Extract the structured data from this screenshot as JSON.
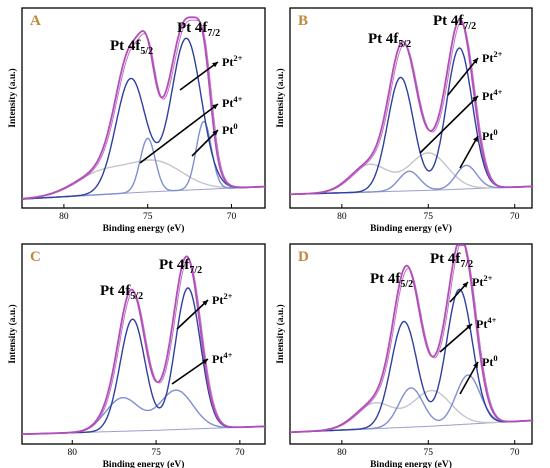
{
  "colors": {
    "envelope": "#b24fb8",
    "pt_main": "#2f3f9e",
    "pt_secondary": "#7f8fd0",
    "pt_third": "#c4c4cc",
    "background_line": "#9a9fcf",
    "axis": "#000000",
    "letter": "#c0883a"
  },
  "chart_data": [
    {
      "panel": "A",
      "type": "line",
      "xlabel": "Binding energy (eV)",
      "ylabel": "Intensity (a.u.)",
      "xlim": [
        82.5,
        68
      ],
      "x_reversed": true,
      "xticks": [
        "80",
        "75",
        "70"
      ],
      "peak_labels": [
        "Pt 4f5/2",
        "Pt 4f7/2"
      ],
      "annotations": [
        "Pt2+",
        "Pt4+",
        "Pt0"
      ],
      "background": [
        [
          82.5,
          0.05
        ],
        [
          75,
          0.09
        ],
        [
          68,
          0.12
        ]
      ],
      "series": [
        {
          "role": "pt_main",
          "peaks": [
            [
              76.0,
              0.64,
              0.9
            ],
            [
              72.7,
              0.85,
              0.9
            ]
          ]
        },
        {
          "role": "pt_secondary",
          "peaks": [
            [
              75.0,
              0.3,
              0.45
            ],
            [
              71.65,
              0.38,
              0.45
            ]
          ]
        },
        {
          "role": "pt_third",
          "peaks": [
            [
              77.8,
              0.12,
              1.6
            ],
            [
              74.5,
              0.16,
              1.6
            ]
          ]
        },
        {
          "role": "envelope",
          "sum": true
        }
      ]
    },
    {
      "panel": "B",
      "type": "line",
      "xlabel": "Binding energy (eV)",
      "ylabel": "Intensity (a.u.)",
      "xlim": [
        83,
        69
      ],
      "x_reversed": true,
      "xticks": [
        "80",
        "75",
        "70"
      ],
      "peak_labels": [
        "Pt 4f5/2",
        "Pt 4f7/2"
      ],
      "annotations": [
        "Pt2+",
        "Pt4+",
        "Pt0"
      ],
      "background": [
        [
          83,
          0.07
        ],
        [
          75,
          0.09
        ],
        [
          69,
          0.11
        ]
      ],
      "series": [
        {
          "role": "pt_main",
          "peaks": [
            [
              76.6,
              0.58,
              0.75
            ],
            [
              73.2,
              0.72,
              0.75
            ]
          ]
        },
        {
          "role": "pt_secondary",
          "peaks": [
            [
              76.1,
              0.1,
              0.6
            ],
            [
              72.8,
              0.12,
              0.6
            ]
          ]
        },
        {
          "role": "pt_third",
          "peaks": [
            [
              78.4,
              0.14,
              1.1
            ],
            [
              75.0,
              0.19,
              1.1
            ]
          ]
        },
        {
          "role": "envelope",
          "sum": true
        }
      ]
    },
    {
      "panel": "C",
      "type": "line",
      "xlabel": "Binding energy (eV)",
      "ylabel": "Intensity (a.u.)",
      "xlim": [
        83,
        68.5
      ],
      "x_reversed": true,
      "xticks": [
        "80",
        "75",
        "70"
      ],
      "peak_labels": [
        "Pt 4f5/2",
        "Pt 4f7/2"
      ],
      "annotations": [
        "Pt2+",
        "Pt4+"
      ],
      "background": [
        [
          83,
          0.05
        ],
        [
          75,
          0.07
        ],
        [
          68.5,
          0.09
        ]
      ],
      "series": [
        {
          "role": "pt_main",
          "peaks": [
            [
              76.4,
              0.57,
              0.75
            ],
            [
              73.1,
              0.72,
              0.75
            ]
          ]
        },
        {
          "role": "pt_secondary",
          "peaks": [
            [
              77.0,
              0.17,
              1.0
            ],
            [
              73.8,
              0.2,
              1.0
            ]
          ]
        },
        {
          "role": "envelope",
          "sum": true
        }
      ]
    },
    {
      "panel": "D",
      "type": "line",
      "xlabel": "Binding energy (eV)",
      "ylabel": "Intensity (a.u.)",
      "xlim": [
        83,
        69
      ],
      "x_reversed": true,
      "xticks": [
        "80",
        "75",
        "70"
      ],
      "peak_labels": [
        "Pt 4f5/2",
        "Pt 4f7/2"
      ],
      "annotations": [
        "Pt2+",
        "Pt4+",
        "Pt0"
      ],
      "background": [
        [
          83,
          0.06
        ],
        [
          75,
          0.09
        ],
        [
          69,
          0.12
        ]
      ],
      "series": [
        {
          "role": "pt_main",
          "peaks": [
            [
              76.4,
              0.54,
              0.75
            ],
            [
              73.2,
              0.69,
              0.75
            ]
          ]
        },
        {
          "role": "pt_secondary",
          "peaks": [
            [
              76.0,
              0.2,
              0.7
            ],
            [
              72.7,
              0.25,
              0.7
            ]
          ]
        },
        {
          "role": "pt_third",
          "peaks": [
            [
              78.1,
              0.13,
              1.1
            ],
            [
              74.8,
              0.18,
              1.1
            ]
          ]
        },
        {
          "role": "envelope",
          "sum": true
        }
      ]
    }
  ]
}
